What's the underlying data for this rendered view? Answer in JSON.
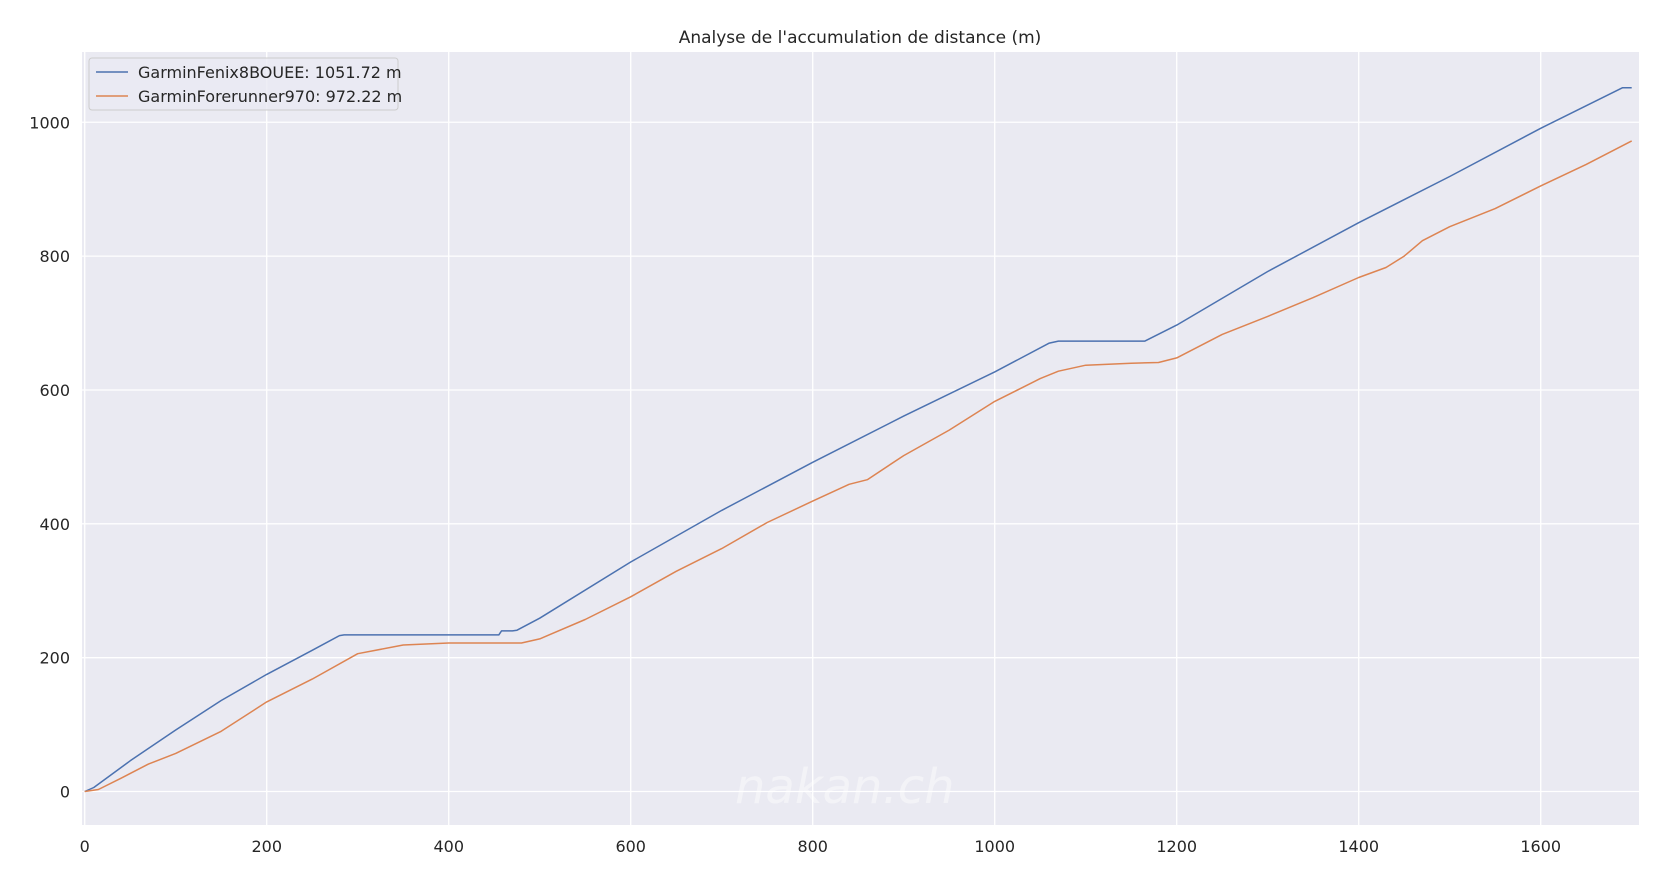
{
  "chart_data": {
    "type": "line",
    "title": "Analyse de l'accumulation de distance (m)",
    "xlabel": "",
    "ylabel": "",
    "xlim": [
      -3,
      1708
    ],
    "ylim": [
      -50,
      1105
    ],
    "xticks": [
      0,
      200,
      400,
      600,
      800,
      1000,
      1200,
      1400,
      1600
    ],
    "yticks": [
      0,
      200,
      400,
      600,
      800,
      1000
    ],
    "grid": true,
    "legend_position": "upper-left",
    "watermark": "nakan.ch",
    "series": [
      {
        "name": "GarminFenix8BOUEE",
        "legend_label": "GarminFenix8BOUEE: 1051.72 m",
        "color": "#4c72b0",
        "x": [
          0,
          10,
          50,
          100,
          150,
          200,
          250,
          280,
          285,
          300,
          400,
          455,
          458,
          470,
          475,
          500,
          600,
          700,
          800,
          900,
          1000,
          1060,
          1070,
          1100,
          1165,
          1200,
          1300,
          1400,
          1500,
          1600,
          1690,
          1700
        ],
        "y": [
          0,
          6,
          46,
          92,
          136,
          175,
          211,
          233,
          234,
          234,
          234,
          234,
          240,
          240,
          241,
          259,
          343,
          420,
          492,
          561,
          627,
          670,
          673,
          673,
          673,
          697,
          777,
          850,
          919,
          991,
          1051.72,
          1051.72
        ]
      },
      {
        "name": "GarminForerunner970",
        "legend_label": "GarminForerunner970: 972.22 m",
        "color": "#dd8452",
        "x": [
          0,
          15,
          40,
          70,
          100,
          150,
          200,
          250,
          300,
          350,
          400,
          450,
          480,
          500,
          550,
          600,
          650,
          700,
          750,
          800,
          840,
          860,
          900,
          950,
          1000,
          1050,
          1070,
          1100,
          1150,
          1180,
          1200,
          1250,
          1300,
          1350,
          1400,
          1430,
          1450,
          1470,
          1500,
          1550,
          1600,
          1650,
          1700
        ],
        "y": [
          0,
          3,
          20,
          41,
          57,
          90,
          134,
          168,
          206,
          219,
          222,
          222,
          222,
          228,
          257,
          291,
          329,
          363,
          402,
          434,
          459,
          466,
          502,
          540,
          583,
          617,
          628,
          637,
          640,
          641,
          648,
          683,
          710,
          738,
          768,
          783,
          800,
          823,
          844,
          871,
          905,
          937,
          972.22
        ]
      }
    ]
  }
}
